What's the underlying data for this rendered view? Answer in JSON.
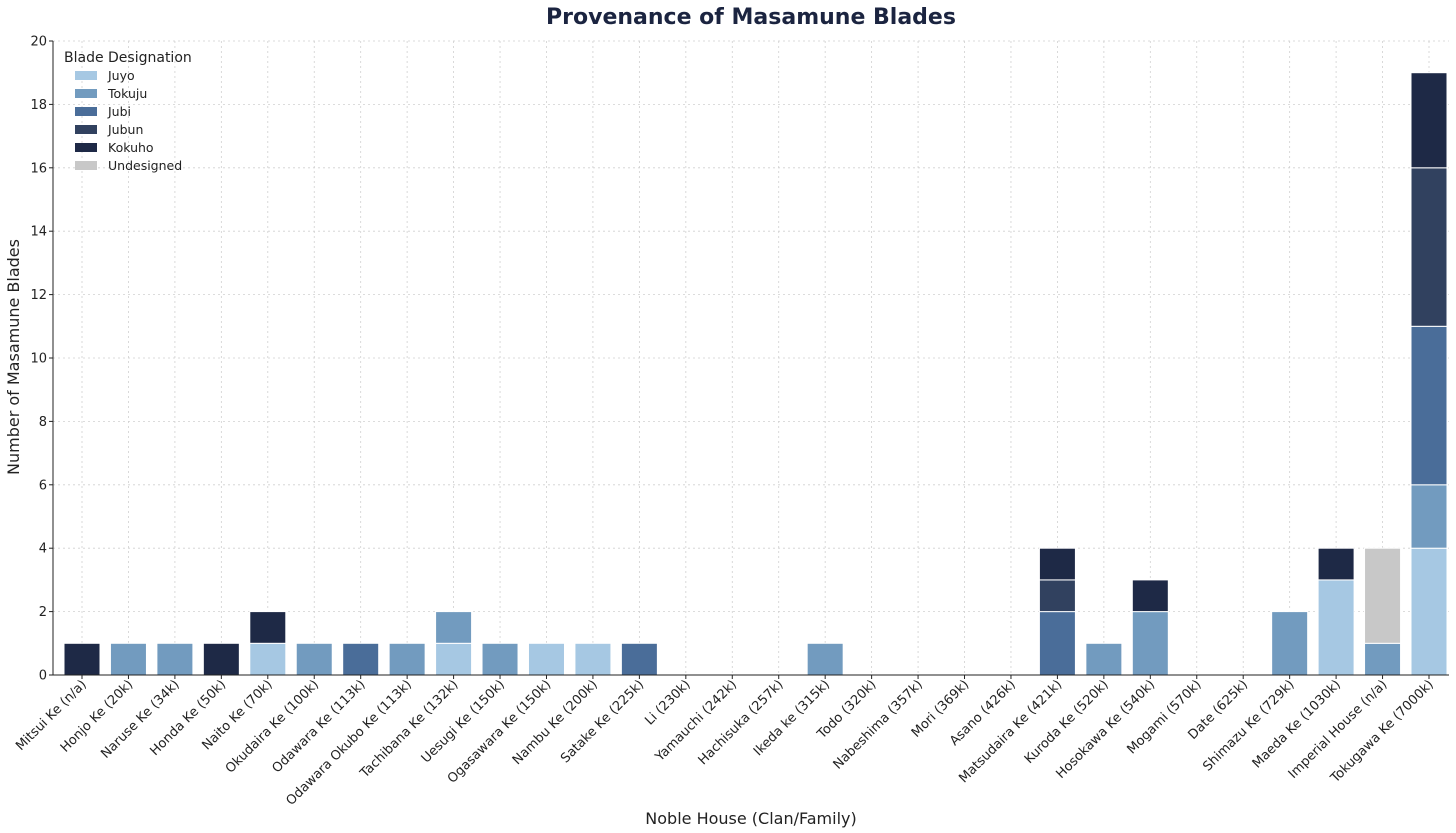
{
  "chart_data": {
    "type": "bar",
    "stacked": true,
    "title": "Provenance of Masamune Blades",
    "xlabel": "Noble House (Clan/Family)",
    "ylabel": "Number of Masamune Blades",
    "ylim": [
      0,
      20
    ],
    "yticks": [
      0,
      2,
      4,
      6,
      8,
      10,
      12,
      14,
      16,
      18,
      20
    ],
    "grid": true,
    "legend": {
      "title": "Blade Designation",
      "position": "top-left"
    },
    "categories": [
      "Mitsui Ke (n/a)",
      "Honjo Ke (20k)",
      "Naruse Ke (34k)",
      "Honda Ke (50k)",
      "Naito Ke (70k)",
      "Okudaira Ke (100k)",
      "Odawara Ke (113k)",
      "Odawara Okubo Ke (113k)",
      "Tachibana Ke (132k)",
      "Uesugi Ke (150k)",
      "Ogasawara Ke (150k)",
      "Nambu Ke (200k)",
      "Satake Ke (225k)",
      "Li (230k)",
      "Yamauchi (242k)",
      "Hachisuka (257k)",
      "Ikeda ke (315k)",
      "Todo (320k)",
      "Nabeshima (357k)",
      "Mori (369k)",
      "Asano (426k)",
      "Matsudaira Ke (421k)",
      "Kuroda Ke (520k)",
      "Hosokawa Ke (540k)",
      "Mogami (570k)",
      "Date (625k)",
      "Shimazu Ke (729k)",
      "Maeda Ke (1030k)",
      "Imperial House (n/a)",
      "Tokugawa Ke (7000k)"
    ],
    "series": [
      {
        "name": "Juyo",
        "color": "#a6c8e3",
        "values": [
          0,
          0,
          0,
          0,
          1,
          0,
          0,
          0,
          1,
          0,
          1,
          1,
          0,
          0,
          0,
          0,
          0,
          0,
          0,
          0,
          0,
          0,
          0,
          0,
          0,
          0,
          0,
          3,
          0,
          4
        ]
      },
      {
        "name": "Tokuju",
        "color": "#729bbf",
        "values": [
          0,
          1,
          1,
          0,
          0,
          1,
          0,
          1,
          1,
          1,
          0,
          0,
          0,
          0,
          0,
          0,
          1,
          0,
          0,
          0,
          0,
          0,
          1,
          2,
          0,
          0,
          2,
          0,
          1,
          2
        ]
      },
      {
        "name": "Jubi",
        "color": "#4a6d99",
        "values": [
          0,
          0,
          0,
          0,
          0,
          0,
          1,
          0,
          0,
          0,
          0,
          0,
          1,
          0,
          0,
          0,
          0,
          0,
          0,
          0,
          0,
          2,
          0,
          0,
          0,
          0,
          0,
          0,
          0,
          5
        ]
      },
      {
        "name": "Jubun",
        "color": "#31415f",
        "values": [
          0,
          0,
          0,
          0,
          0,
          0,
          0,
          0,
          0,
          0,
          0,
          0,
          0,
          0,
          0,
          0,
          0,
          0,
          0,
          0,
          0,
          1,
          0,
          0,
          0,
          0,
          0,
          0,
          0,
          5
        ]
      },
      {
        "name": "Kokuho",
        "color": "#1e2946",
        "values": [
          1,
          0,
          0,
          1,
          1,
          0,
          0,
          0,
          0,
          0,
          0,
          0,
          0,
          0,
          0,
          0,
          0,
          0,
          0,
          0,
          0,
          1,
          0,
          1,
          0,
          0,
          0,
          1,
          0,
          3
        ]
      },
      {
        "name": "Undesigned",
        "color": "#c8c8c8",
        "values": [
          0,
          0,
          0,
          0,
          0,
          0,
          0,
          0,
          0,
          0,
          0,
          0,
          0,
          0,
          0,
          0,
          0,
          0,
          0,
          0,
          0,
          0,
          0,
          0,
          0,
          0,
          0,
          0,
          3,
          0
        ]
      }
    ]
  }
}
